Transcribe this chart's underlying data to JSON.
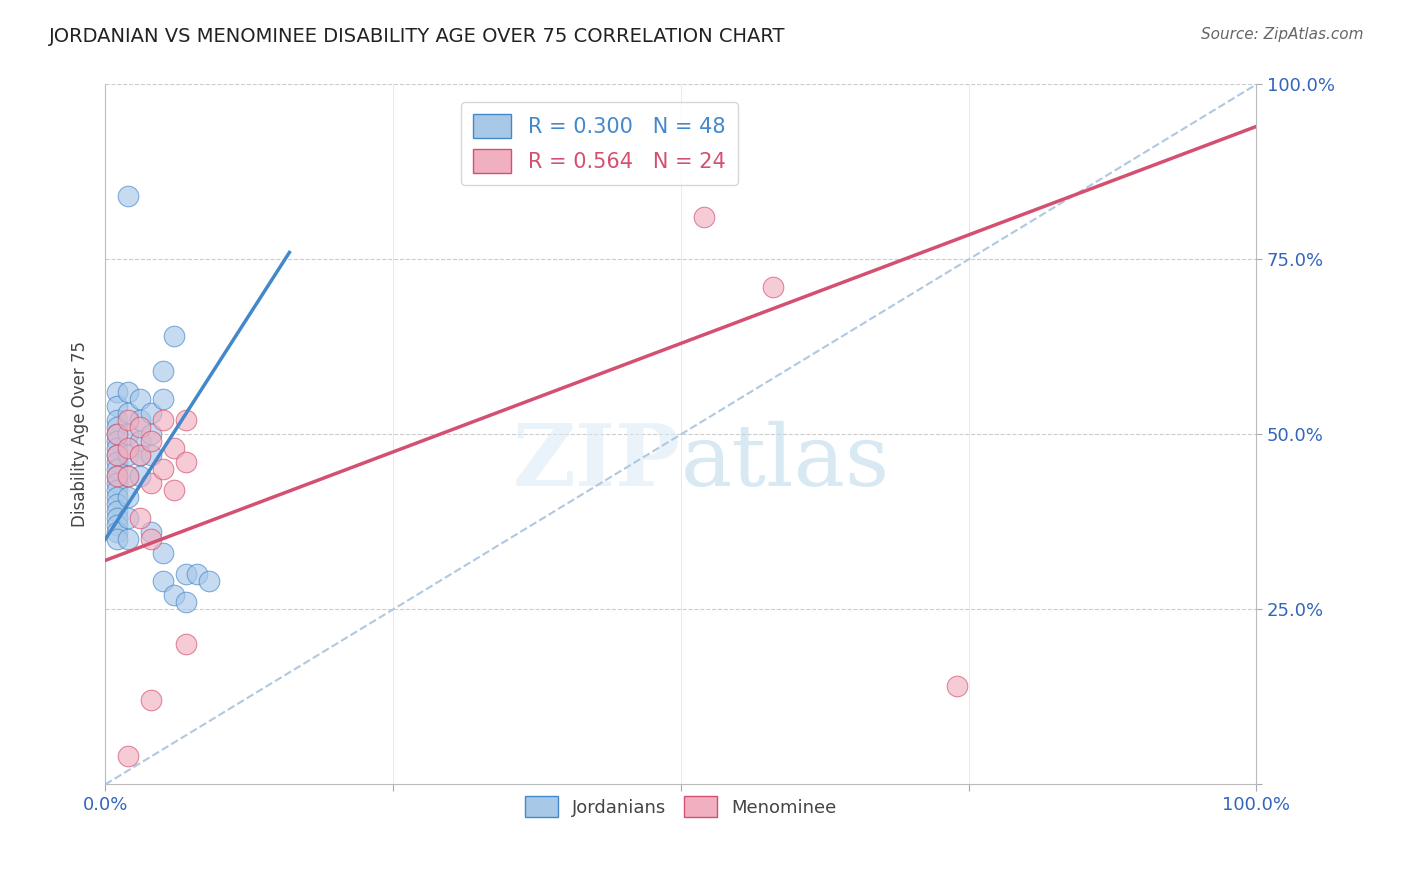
{
  "title": "JORDANIAN VS MENOMINEE DISABILITY AGE OVER 75 CORRELATION CHART",
  "source": "Source: ZipAtlas.com",
  "ylabel": "Disability Age Over 75",
  "blue_R": 0.3,
  "blue_N": 48,
  "pink_R": 0.564,
  "pink_N": 24,
  "xlim": [
    0.0,
    1.0
  ],
  "ylim": [
    0.0,
    1.0
  ],
  "blue_color": "#a8c8e8",
  "pink_color": "#f0b0c0",
  "blue_line_color": "#4488cc",
  "pink_line_color": "#d45070",
  "dashed_line_color": "#b0c8e0",
  "blue_scatter": [
    [
      0.01,
      0.56
    ],
    [
      0.01,
      0.54
    ],
    [
      0.01,
      0.52
    ],
    [
      0.01,
      0.51
    ],
    [
      0.01,
      0.5
    ],
    [
      0.01,
      0.49
    ],
    [
      0.01,
      0.48
    ],
    [
      0.01,
      0.47
    ],
    [
      0.01,
      0.46
    ],
    [
      0.01,
      0.45
    ],
    [
      0.01,
      0.44
    ],
    [
      0.01,
      0.43
    ],
    [
      0.01,
      0.42
    ],
    [
      0.01,
      0.41
    ],
    [
      0.01,
      0.4
    ],
    [
      0.01,
      0.39
    ],
    [
      0.01,
      0.38
    ],
    [
      0.01,
      0.37
    ],
    [
      0.01,
      0.36
    ],
    [
      0.01,
      0.35
    ],
    [
      0.02,
      0.56
    ],
    [
      0.02,
      0.53
    ],
    [
      0.02,
      0.5
    ],
    [
      0.02,
      0.47
    ],
    [
      0.02,
      0.44
    ],
    [
      0.02,
      0.41
    ],
    [
      0.02,
      0.38
    ],
    [
      0.02,
      0.35
    ],
    [
      0.03,
      0.55
    ],
    [
      0.03,
      0.52
    ],
    [
      0.03,
      0.49
    ],
    [
      0.03,
      0.47
    ],
    [
      0.03,
      0.44
    ],
    [
      0.04,
      0.53
    ],
    [
      0.04,
      0.5
    ],
    [
      0.04,
      0.47
    ],
    [
      0.04,
      0.36
    ],
    [
      0.05,
      0.33
    ],
    [
      0.05,
      0.29
    ],
    [
      0.06,
      0.27
    ],
    [
      0.07,
      0.26
    ],
    [
      0.07,
      0.3
    ],
    [
      0.08,
      0.3
    ],
    [
      0.09,
      0.29
    ],
    [
      0.02,
      0.84
    ],
    [
      0.06,
      0.64
    ],
    [
      0.05,
      0.59
    ],
    [
      0.05,
      0.55
    ]
  ],
  "pink_scatter": [
    [
      0.01,
      0.5
    ],
    [
      0.01,
      0.47
    ],
    [
      0.01,
      0.44
    ],
    [
      0.02,
      0.52
    ],
    [
      0.02,
      0.48
    ],
    [
      0.02,
      0.44
    ],
    [
      0.03,
      0.51
    ],
    [
      0.03,
      0.47
    ],
    [
      0.04,
      0.49
    ],
    [
      0.04,
      0.43
    ],
    [
      0.05,
      0.52
    ],
    [
      0.05,
      0.45
    ],
    [
      0.06,
      0.48
    ],
    [
      0.06,
      0.42
    ],
    [
      0.07,
      0.52
    ],
    [
      0.07,
      0.46
    ],
    [
      0.04,
      0.12
    ],
    [
      0.07,
      0.2
    ],
    [
      0.02,
      0.04
    ],
    [
      0.52,
      0.81
    ],
    [
      0.58,
      0.71
    ],
    [
      0.74,
      0.14
    ],
    [
      0.03,
      0.38
    ],
    [
      0.04,
      0.35
    ]
  ],
  "blue_line": [
    [
      0.0,
      0.35
    ],
    [
      0.16,
      0.76
    ]
  ],
  "pink_line": [
    [
      0.0,
      0.32
    ],
    [
      1.0,
      0.94
    ]
  ],
  "dashed_line": [
    [
      0.0,
      0.0
    ],
    [
      1.0,
      1.0
    ]
  ]
}
